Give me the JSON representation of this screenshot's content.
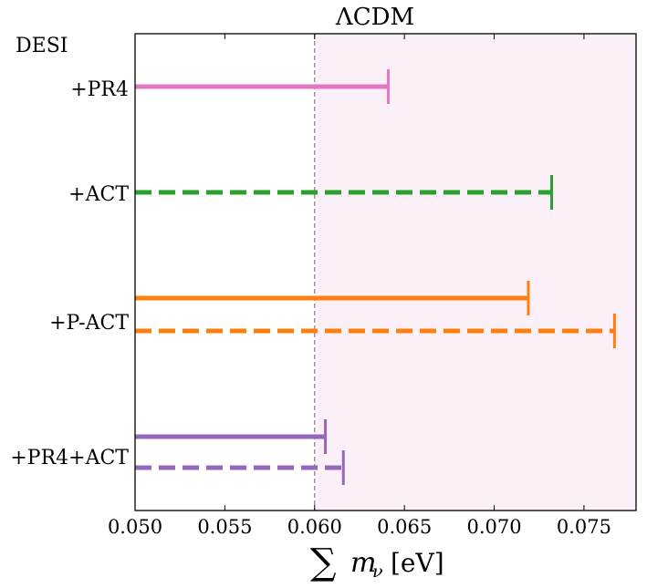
{
  "chart_data": {
    "type": "errorbar-upper-limits",
    "title": "ΛCDM",
    "annotation": "DESI",
    "xlabel": {
      "sum_symbol": "∑",
      "variable": "m",
      "subscript": "ν",
      "unit": "[eV]"
    },
    "xlim": [
      0.05,
      0.0779
    ],
    "xticks": [
      0.05,
      0.055,
      0.06,
      0.065,
      0.07,
      0.075
    ],
    "xtick_labels": [
      "0.050",
      "0.055",
      "0.060",
      "0.065",
      "0.070",
      "0.075"
    ],
    "reference_line": {
      "x": 0.06,
      "style": "dashed",
      "color": "#808080"
    },
    "shaded_region": {
      "from": 0.06,
      "to": 0.0779,
      "color": "#fbf0f8"
    },
    "rows": [
      {
        "label": "+PR4",
        "bars": [
          {
            "lower": 0.05,
            "upper": 0.0641,
            "style": "solid",
            "color": "#e377c2"
          }
        ]
      },
      {
        "label": "+ACT",
        "bars": [
          {
            "lower": 0.05,
            "upper": 0.0732,
            "style": "dashed",
            "color": "#2ca02c"
          }
        ]
      },
      {
        "label": "+P-ACT",
        "bars": [
          {
            "lower": 0.05,
            "upper": 0.0719,
            "style": "solid",
            "color": "#ff7f0e"
          },
          {
            "lower": 0.05,
            "upper": 0.0767,
            "style": "dashed",
            "color": "#ff7f0e"
          }
        ]
      },
      {
        "label": "+PR4+ACT",
        "bars": [
          {
            "lower": 0.05,
            "upper": 0.0606,
            "style": "solid",
            "color": "#9467bd"
          },
          {
            "lower": 0.05,
            "upper": 0.0616,
            "style": "dashed",
            "color": "#9467bd"
          }
        ]
      }
    ]
  }
}
